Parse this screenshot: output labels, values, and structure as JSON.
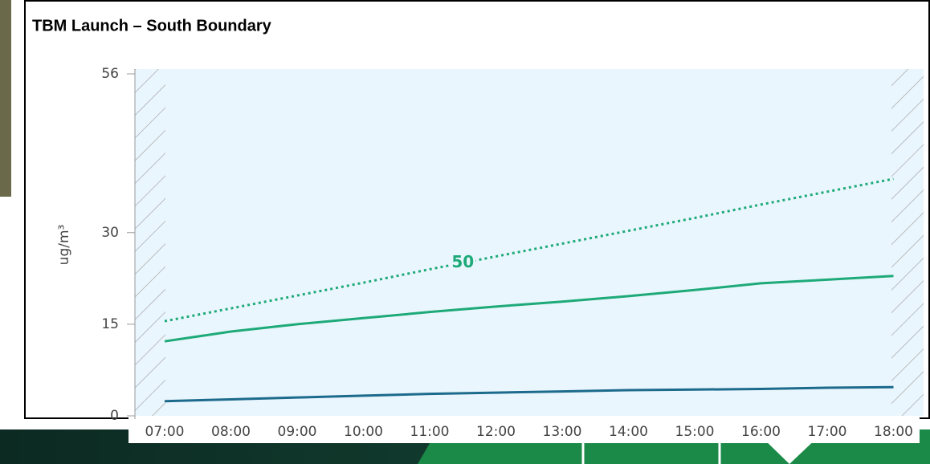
{
  "chart_data": {
    "type": "line",
    "title": "TBM Launch – South Boundary",
    "y_label": "ug/m³",
    "categories": [
      "07:00",
      "08:00",
      "09:00",
      "10:00",
      "11:00",
      "12:00",
      "13:00",
      "14:00",
      "15:00",
      "16:00",
      "17:00",
      "18:00"
    ],
    "series": [
      {
        "color": "#1eaa78",
        "style": "dotted",
        "label": "50",
        "values": [
          15.5,
          17.6,
          19.7,
          21.8,
          24.0,
          26.1,
          28.2,
          30.3,
          32.4,
          34.6,
          36.7,
          38.8
        ]
      },
      {
        "color": "#1eaa78",
        "style": "solid",
        "values": [
          12.2,
          13.8,
          15.0,
          16.0,
          17.0,
          17.9,
          18.7,
          19.6,
          20.6,
          21.7,
          22.3,
          22.9
        ]
      },
      {
        "color": "#1c6a8c",
        "style": "solid",
        "values": [
          2.4,
          2.7,
          3.0,
          3.3,
          3.6,
          3.8,
          4.0,
          4.2,
          4.3,
          4.4,
          4.6,
          4.7
        ]
      }
    ],
    "ylim": [
      0,
      56
    ],
    "yticks": [
      0,
      15,
      30,
      56
    ],
    "grid": false
  }
}
